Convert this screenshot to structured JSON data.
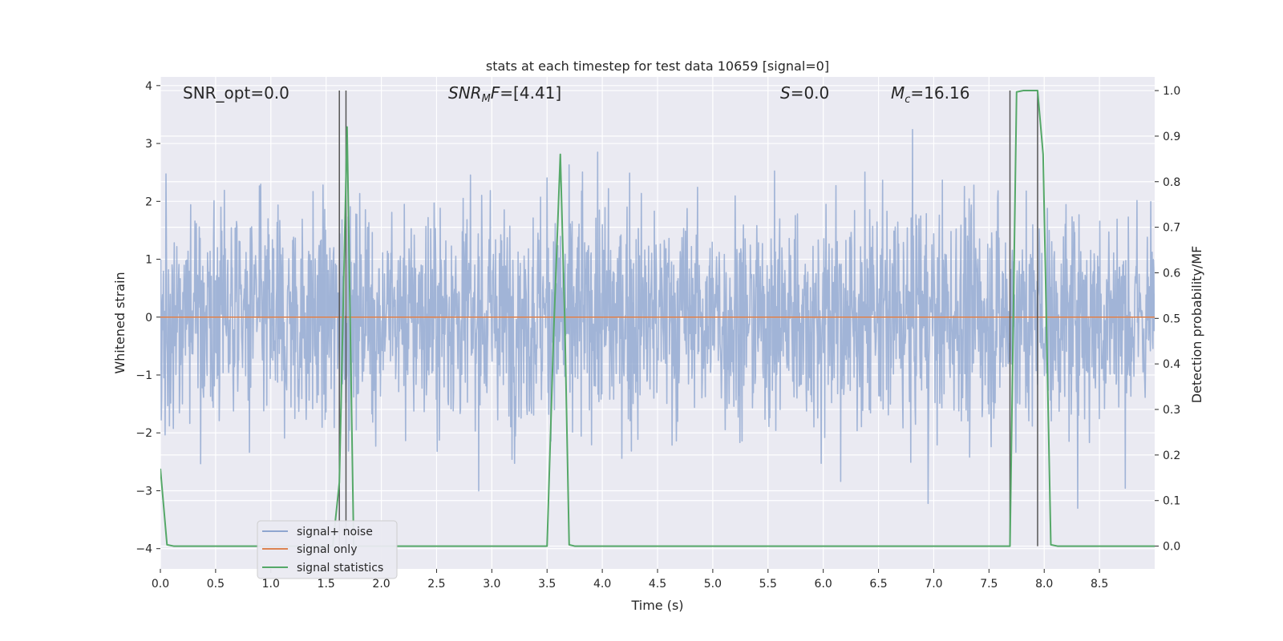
{
  "chart_data": {
    "type": "line",
    "title": "stats at each timestep for test data 10659 [signal=0]",
    "xlabel": "Time (s)",
    "ylabel": "Whitened strain",
    "y2label": "Detection probability/MF",
    "xlim": [
      0.0,
      9.0
    ],
    "ylim": [
      -4.35,
      4.15
    ],
    "y2lim": [
      -0.05,
      1.03
    ],
    "x_ticks": [
      0.0,
      0.5,
      1.0,
      1.5,
      2.0,
      2.5,
      3.0,
      3.5,
      4.0,
      4.5,
      5.0,
      5.5,
      6.0,
      6.5,
      7.0,
      7.5,
      8.0,
      8.5
    ],
    "y_ticks": [
      -4,
      -3,
      -2,
      -1,
      0,
      1,
      2,
      3,
      4
    ],
    "y2_ticks": [
      0.0,
      0.1,
      0.2,
      0.3,
      0.4,
      0.5,
      0.6,
      0.7,
      0.8,
      0.9,
      1.0
    ],
    "grid": true,
    "legend_position": "lower-left",
    "annotations": [
      {
        "text": "SNR_opt=0.0",
        "x": 0.2,
        "y": 3.8
      },
      {
        "text": "SNRMF=[4.41]",
        "x": 2.6,
        "y": 3.8
      },
      {
        "text": "S=0.0",
        "x": 5.6,
        "y": 3.8
      },
      {
        "text": "Mc=16.16",
        "x": 6.6,
        "y": 3.8
      }
    ],
    "vertical_lines": [
      1.62,
      1.68,
      7.69,
      7.94
    ],
    "series": [
      {
        "name": "signal+ noise",
        "color": "#8fa6cf",
        "description": "whitened strain noise, approx. Gaussian, amplitude within about -4 to 3.8"
      },
      {
        "name": "signal only",
        "color": "#dd8452",
        "x": [
          0.0,
          9.0
        ],
        "y": [
          0.0,
          0.0
        ]
      },
      {
        "name": "signal statistics",
        "color": "#55a868",
        "axis": "right",
        "x": [
          0.0,
          0.06,
          0.12,
          0.25,
          0.5,
          1.0,
          1.5,
          1.56,
          1.62,
          1.69,
          1.75,
          1.81,
          1.9,
          2.5,
          3.0,
          3.5,
          3.56,
          3.62,
          3.66,
          3.7,
          3.75,
          4.0,
          5.0,
          6.0,
          7.0,
          7.5,
          7.62,
          7.69,
          7.75,
          7.81,
          7.88,
          7.94,
          7.99,
          8.06,
          8.12,
          8.25,
          9.0
        ],
        "y": [
          0.17,
          0.003,
          0.0,
          0.0,
          0.0,
          0.0,
          0.0,
          0.0,
          0.14,
          0.92,
          0.0,
          0.0,
          0.0,
          0.0,
          0.0,
          0.0,
          0.47,
          0.86,
          0.5,
          0.003,
          0.0,
          0.0,
          0.0,
          0.0,
          0.0,
          0.0,
          0.0,
          0.0,
          0.997,
          1.0,
          1.0,
          1.0,
          0.86,
          0.003,
          0.0,
          0.0,
          0.0
        ]
      }
    ]
  }
}
